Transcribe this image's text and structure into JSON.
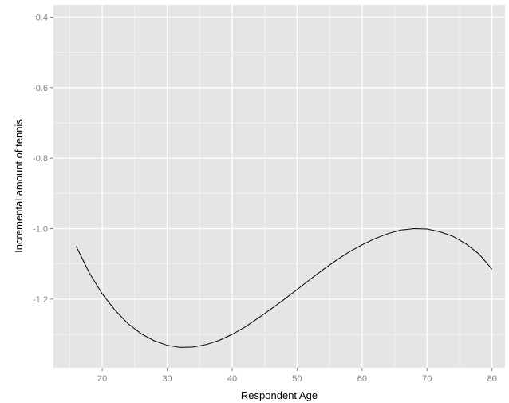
{
  "chart_data": {
    "type": "line",
    "title": "",
    "xlabel": "Respondent Age",
    "ylabel": "Incremental amount of tennis",
    "xlim": [
      12.5,
      82
    ],
    "ylim": [
      -1.395,
      -0.365
    ],
    "xticks": [
      20,
      30,
      40,
      50,
      60,
      70,
      80
    ],
    "yticks": [
      -1.2,
      -1.0,
      -0.8,
      -0.6,
      -0.4
    ],
    "ytick_labels": [
      "-1.2",
      "-1.0",
      "-0.8",
      "-0.6",
      "-0.4"
    ],
    "grid": true,
    "legend": "none",
    "series": [
      {
        "x": [
          16,
          18,
          20,
          22,
          24,
          26,
          28,
          30,
          32,
          34,
          36,
          38,
          40,
          42,
          44,
          46,
          48,
          50,
          52,
          54,
          56,
          58,
          60,
          62,
          64,
          66,
          68,
          70,
          72,
          74,
          76,
          78,
          80
        ],
        "values": [
          -1.05,
          -1.125,
          -1.185,
          -1.232,
          -1.27,
          -1.298,
          -1.318,
          -1.331,
          -1.337,
          -1.336,
          -1.329,
          -1.317,
          -1.3,
          -1.279,
          -1.254,
          -1.228,
          -1.201,
          -1.173,
          -1.144,
          -1.116,
          -1.09,
          -1.066,
          -1.046,
          -1.028,
          -1.014,
          -1.004,
          -1.0,
          -1.001,
          -1.009,
          -1.022,
          -1.043,
          -1.072,
          -1.115
        ]
      }
    ],
    "colors": {
      "panel_background": "#e5e5e5",
      "grid_major": "#ffffff",
      "grid_minor": "#f2f2f2",
      "line": "#000000",
      "tick_text": "#7f7f7f"
    }
  }
}
